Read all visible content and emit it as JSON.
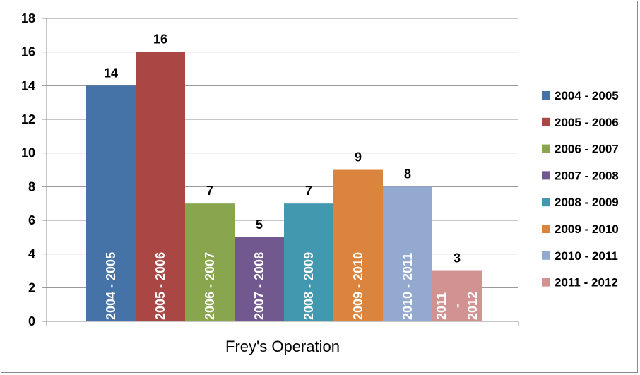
{
  "chart_data": {
    "type": "bar",
    "title": "",
    "xlabel": "Frey's Operation",
    "ylabel": "",
    "ylim": [
      0,
      18
    ],
    "yticks": [
      0,
      2,
      4,
      6,
      8,
      10,
      12,
      14,
      16,
      18
    ],
    "grid": true,
    "legend_position": "right",
    "series": [
      {
        "name": "2004 - 2005",
        "values": [
          14
        ],
        "color": "#4572a7",
        "bar_text": [
          "2004 - 2005"
        ]
      },
      {
        "name": "2005 - 2006",
        "values": [
          16
        ],
        "color": "#aa4643",
        "bar_text": [
          "2005 - 2006"
        ]
      },
      {
        "name": "2006 - 2007",
        "values": [
          7
        ],
        "color": "#89a54e",
        "bar_text": [
          "2006 - 2007"
        ]
      },
      {
        "name": "2007 - 2008",
        "values": [
          5
        ],
        "color": "#71588f",
        "bar_text": [
          "2007 - 2008"
        ]
      },
      {
        "name": "2008 - 2009",
        "values": [
          7
        ],
        "color": "#4198af",
        "bar_text": [
          "2008 - 2009"
        ]
      },
      {
        "name": "2009 - 2010",
        "values": [
          9
        ],
        "color": "#db843d",
        "bar_text": [
          "2009 - 2010"
        ]
      },
      {
        "name": "2010 - 2011",
        "values": [
          8
        ],
        "color": "#93a9cf",
        "bar_text": [
          "2010 - 2011"
        ]
      },
      {
        "name": "2011 - 2012",
        "values": [
          3
        ],
        "color": "#d19392",
        "bar_text": [
          "2011",
          "-",
          "2012"
        ]
      }
    ]
  }
}
